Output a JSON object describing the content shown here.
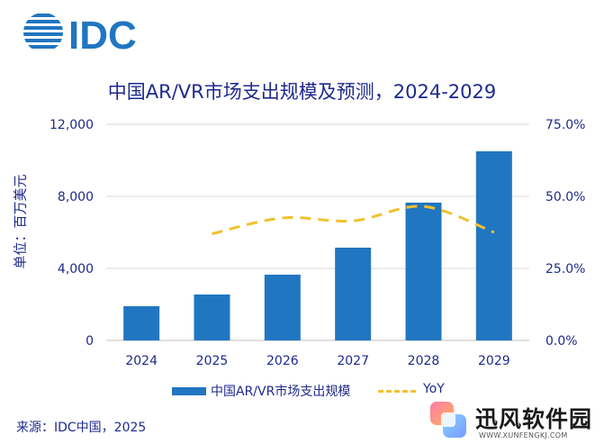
{
  "logo": {
    "text": "IDC"
  },
  "chart_data": {
    "type": "bar",
    "title": "中国AR/VR市场支出规模及预测，2024-2029",
    "categories": [
      "2024",
      "2025",
      "2026",
      "2027",
      "2028",
      "2029"
    ],
    "series": [
      {
        "name": "中国AR/VR市场支出规模",
        "type": "bar",
        "axis": "left",
        "color": "#2176c1",
        "values": [
          1900,
          2550,
          3650,
          5150,
          7650,
          10500
        ]
      },
      {
        "name": "YoY",
        "type": "line",
        "style": "dashed",
        "axis": "right",
        "color": "#f2c12e",
        "values": [
          null,
          0.37,
          0.425,
          0.415,
          0.465,
          0.375
        ]
      }
    ],
    "ylabel": "单位：百万美元",
    "ylim": [
      0,
      12000
    ],
    "yticks": [
      "0",
      "4,000",
      "8,000",
      "12,000"
    ],
    "y2lim": [
      0,
      0.75
    ],
    "y2ticks": [
      "0.0%",
      "25.0%",
      "50.0%",
      "75.0%"
    ],
    "grid": true,
    "legend": "bottom"
  },
  "source": "来源：IDC中国，2025",
  "watermark": {
    "name": "迅风软件园",
    "url": "WWW.XUNFENGKJ.COM"
  },
  "colors": {
    "bar": "#2176c1",
    "line": "#f2c12e",
    "text": "#1f2a8c",
    "grid": "#d9d9d9"
  }
}
